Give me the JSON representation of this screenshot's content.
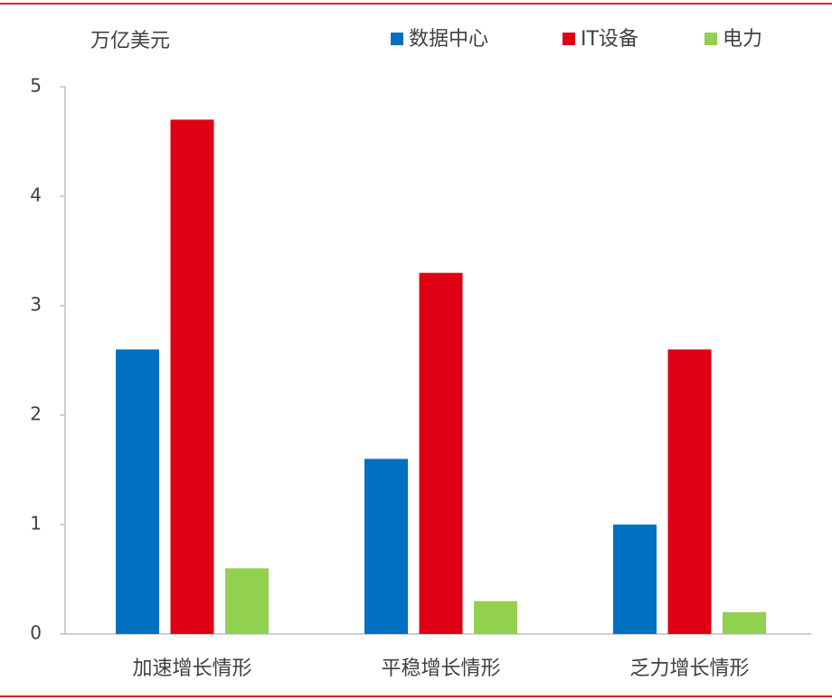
{
  "chart_data": {
    "type": "bar",
    "y_label": "万亿美元",
    "categories": [
      "加速增长情形",
      "平稳增长情形",
      "乏力增长情形"
    ],
    "series": [
      {
        "name": "数据中心",
        "color": "#0070c0",
        "values": [
          2.6,
          1.6,
          1.0
        ]
      },
      {
        "name": "IT设备",
        "color": "#e00016",
        "values": [
          4.7,
          3.3,
          2.6
        ]
      },
      {
        "name": "电力",
        "color": "#92d050",
        "values": [
          0.6,
          0.3,
          0.2
        ]
      }
    ],
    "ylim": [
      0,
      5
    ],
    "yticks": [
      0,
      1,
      2,
      3,
      4,
      5
    ],
    "grid": false,
    "legend": "top"
  }
}
